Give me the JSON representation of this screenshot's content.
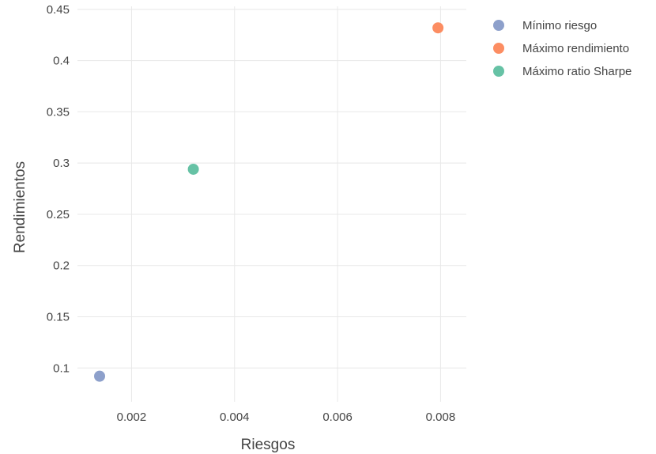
{
  "chart_data": {
    "type": "scatter",
    "xlabel": "Riesgos",
    "ylabel": "Rendimientos",
    "xlim": [
      0.00095,
      0.0085
    ],
    "ylim": [
      0.067,
      0.453
    ],
    "x_ticks": [
      0.002,
      0.004,
      0.006,
      0.008
    ],
    "x_tick_labels": [
      "0.002",
      "0.004",
      "0.006",
      "0.008"
    ],
    "y_ticks": [
      0.1,
      0.15,
      0.2,
      0.25,
      0.3,
      0.35,
      0.4,
      0.45
    ],
    "y_tick_labels": [
      "0.1",
      "0.15",
      "0.2",
      "0.25",
      "0.3",
      "0.35",
      "0.4",
      "0.45"
    ],
    "grid": true,
    "legend_position": "top-right",
    "series": [
      {
        "name": "Mínimo riesgo",
        "color": "#8da0cb",
        "points": [
          {
            "x": 0.00138,
            "y": 0.092
          }
        ]
      },
      {
        "name": "Máximo rendimiento",
        "color": "#fc8d62",
        "points": [
          {
            "x": 0.00795,
            "y": 0.432
          }
        ]
      },
      {
        "name": "Máximo ratio Sharpe",
        "color": "#66c2a5",
        "points": [
          {
            "x": 0.0032,
            "y": 0.294
          }
        ]
      }
    ]
  }
}
